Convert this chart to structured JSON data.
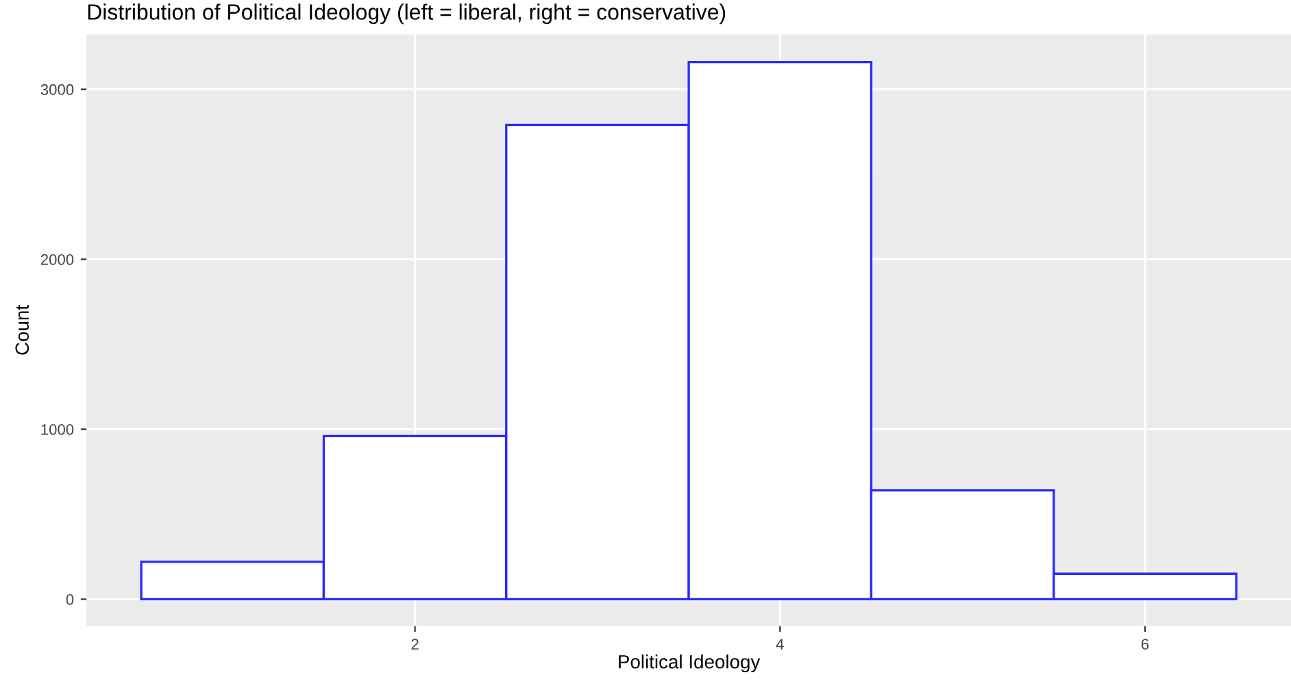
{
  "chart_data": {
    "type": "histogram",
    "title": "Distribution of Political Ideology (left = liberal, right = conservative)",
    "xlabel": "Political Ideology",
    "ylabel": "Count",
    "bins": [
      0.5,
      1.5,
      2.5,
      3.5,
      4.5,
      5.5,
      6.5
    ],
    "values": [
      220,
      960,
      2790,
      3160,
      640,
      150
    ],
    "color": "#2b2bff",
    "xlim": [
      0.2,
      6.8
    ],
    "ylim": [
      -158,
      3323
    ],
    "xticks": [
      2,
      4,
      6
    ],
    "yticks": [
      0,
      1000,
      2000,
      3000
    ],
    "grid": true,
    "legend": false
  }
}
